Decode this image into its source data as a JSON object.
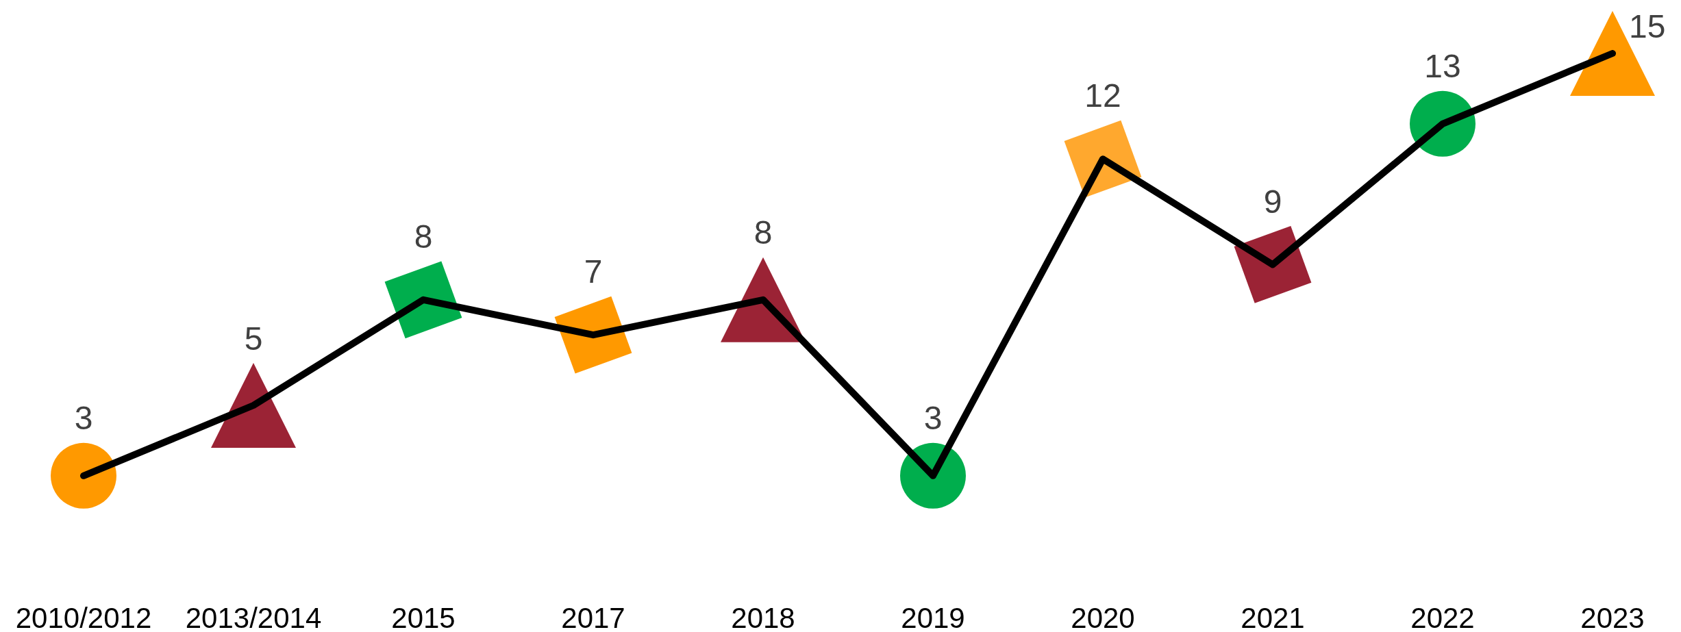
{
  "chart_data": {
    "type": "line",
    "categories": [
      "2010/2012",
      "2013/2014",
      "2015",
      "2017",
      "2018",
      "2019",
      "2020",
      "2021",
      "2022",
      "2023"
    ],
    "series": [
      {
        "color": "#000000",
        "values": [
          3,
          5,
          8,
          7,
          8,
          3,
          12,
          9,
          13,
          15
        ],
        "marker": "none",
        "line_style": "solid"
      },
      {
        "type": "scatter",
        "values": [
          3,
          5,
          8,
          7,
          8,
          3,
          12,
          9,
          13,
          15
        ],
        "colors": [
          "#ff9900",
          "#9b2335",
          "#00ae4d",
          "#ff9900",
          "#9b2335",
          "#00ae4d",
          "#ffa82e",
          "#9b2335",
          "#00ae4d",
          "#ff9900"
        ],
        "marker": [
          "circle",
          "triangle",
          "square",
          "square",
          "triangle",
          "circle",
          "square",
          "square",
          "circle",
          "triangle"
        ],
        "value_labels": [
          "3",
          "5",
          "8",
          "7",
          "8",
          "3",
          "12",
          "9",
          "13",
          "15"
        ]
      }
    ],
    "grid": false
  }
}
